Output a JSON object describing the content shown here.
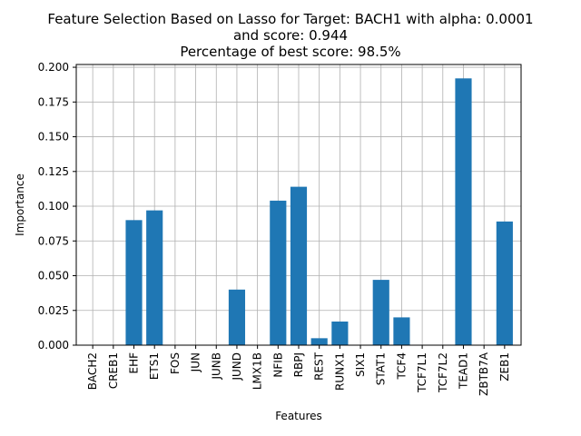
{
  "chart_data": {
    "type": "bar",
    "title_lines": [
      "Feature Selection Based on Lasso for Target: BACH1 with alpha: 0.0001",
      "and score: 0.944",
      "Percentage of best score: 98.5%"
    ],
    "xlabel": "Features",
    "ylabel": "Importance",
    "categories": [
      "BACH2",
      "CREB1",
      "EHF",
      "ETS1",
      "FOS",
      "JUN",
      "JUNB",
      "JUND",
      "LMX1B",
      "NFIB",
      "RBPJ",
      "REST",
      "RUNX1",
      "SIX1",
      "STAT1",
      "TCF4",
      "TCF7L1",
      "TCF7L2",
      "TEAD1",
      "ZBTB7A",
      "ZEB1"
    ],
    "values": [
      0.0,
      0.0,
      0.09,
      0.097,
      0.0,
      0.0,
      0.0,
      0.04,
      0.0,
      0.104,
      0.114,
      0.005,
      0.017,
      0.0,
      0.047,
      0.02,
      0.0,
      0.0,
      0.192,
      0.0,
      0.089
    ],
    "ylim": [
      0,
      0.202
    ],
    "yticks": [
      0.0,
      0.025,
      0.05,
      0.075,
      0.1,
      0.125,
      0.15,
      0.175,
      0.2
    ],
    "ytick_labels": [
      "0.000",
      "0.025",
      "0.050",
      "0.075",
      "0.100",
      "0.125",
      "0.150",
      "0.175",
      "0.200"
    ],
    "grid": true,
    "bar_color": "#1f77b4",
    "grid_color": "#b0b0b0"
  }
}
